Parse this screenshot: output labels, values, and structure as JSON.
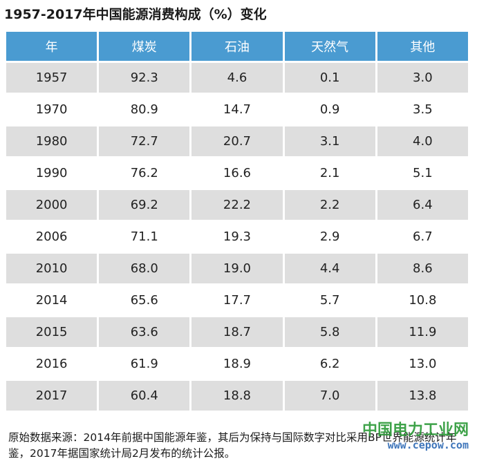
{
  "title": "1957-2017年中国能源消费构成（%）变化",
  "table": {
    "headers": [
      "年",
      "煤炭",
      "石油",
      "天然气",
      "其他"
    ],
    "rows": [
      [
        "1957",
        "92.3",
        "4.6",
        "0.1",
        "3.0"
      ],
      [
        "1970",
        "80.9",
        "14.7",
        "0.9",
        "3.5"
      ],
      [
        "1980",
        "72.7",
        "20.7",
        "3.1",
        "4.0"
      ],
      [
        "1990",
        "76.2",
        "16.6",
        "2.1",
        "5.1"
      ],
      [
        "2000",
        "69.2",
        "22.2",
        "2.2",
        "6.4"
      ],
      [
        "2006",
        "71.1",
        "19.3",
        "2.9",
        "6.7"
      ],
      [
        "2010",
        "68.0",
        "19.0",
        "4.4",
        "8.6"
      ],
      [
        "2014",
        "65.6",
        "17.7",
        "5.7",
        "10.8"
      ],
      [
        "2015",
        "63.6",
        "18.7",
        "5.8",
        "11.9"
      ],
      [
        "2016",
        "61.9",
        "18.9",
        "6.2",
        "13.0"
      ],
      [
        "2017",
        "60.4",
        "18.8",
        "7.0",
        "13.8"
      ]
    ]
  },
  "footnote": "原始数据来源：2014年前据中国能源年鉴，其后为保持与国际数字对比采用BP世界能源统计年鉴，2017年据国家统计局2月发布的统计公报。",
  "watermark": {
    "name": "中国电力工业网",
    "url": "www.cepow.com"
  },
  "colors": {
    "header_bg": "#4a9bd1",
    "shaded_row_bg": "#dedede",
    "watermark_green": "#2e9b3a",
    "watermark_blue": "#2f6bb5"
  }
}
